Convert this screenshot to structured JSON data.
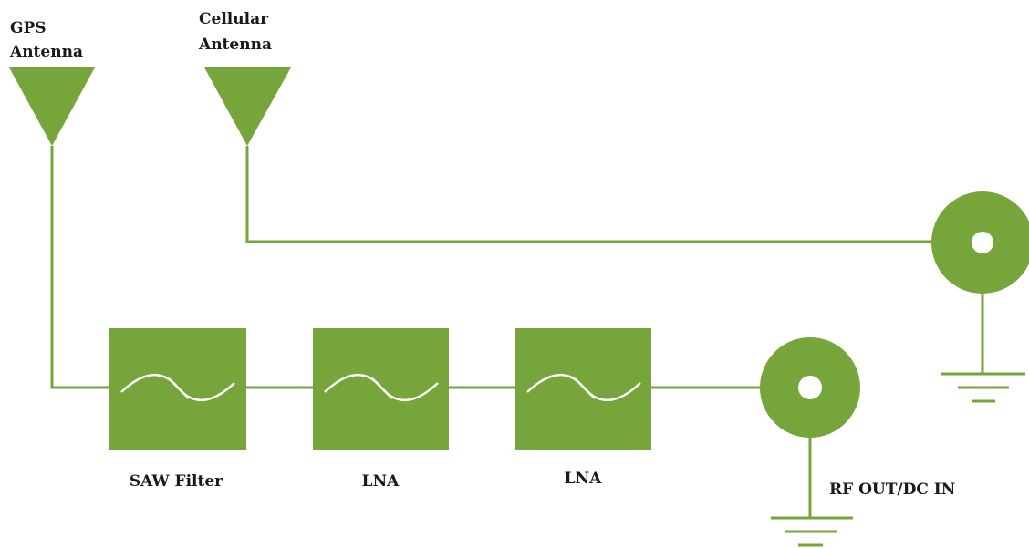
{
  "labels": {
    "gps_antenna": [
      "GPS",
      "Antenna"
    ],
    "cellular_antenna": [
      "Cellular",
      "Antenna"
    ],
    "saw_filter": "SAW Filter",
    "lna_1": "LNA",
    "lna_2": "LNA",
    "rf_out": "RF OUT/DC IN"
  },
  "colors": {
    "primary": "#76a53c",
    "text": "#1a1a1a",
    "background": "#ffffff"
  },
  "icons": {
    "antenna": "antenna-triangle-icon",
    "filter": "filter-wave-icon",
    "connector": "coaxial-connector-icon",
    "ground": "ground-symbol-icon"
  }
}
